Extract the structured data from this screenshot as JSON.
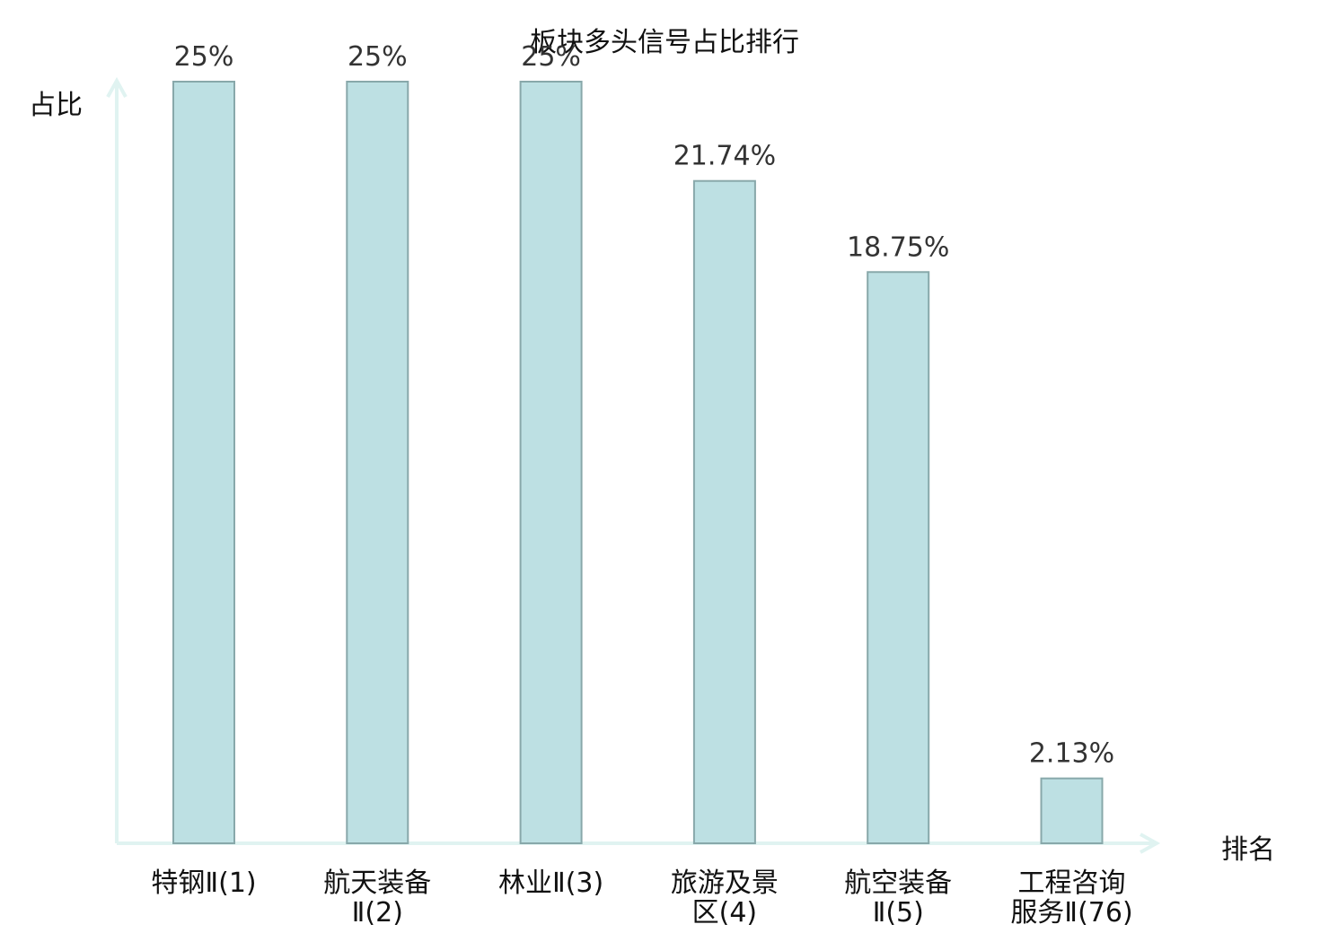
{
  "chart_data": {
    "type": "bar",
    "title": "板块多头信号占比排行",
    "ylabel": "占比",
    "xlabel": "排名",
    "categories": [
      [
        "特钢Ⅱ(1)"
      ],
      [
        "航天装备",
        "Ⅱ(2)"
      ],
      [
        "林业Ⅱ(3)"
      ],
      [
        "旅游及景",
        "区(4)"
      ],
      [
        "航空装备",
        "Ⅱ(5)"
      ],
      [
        "工程咨询",
        "服务Ⅱ(76)"
      ]
    ],
    "values": [
      25,
      25,
      25,
      21.74,
      18.75,
      2.13
    ],
    "value_labels": [
      "25%",
      "25%",
      "25%",
      "21.74%",
      "18.75%",
      "2.13%"
    ],
    "highlight_index": 5,
    "ylim": [
      0,
      25
    ],
    "grid": false,
    "colors": {
      "bar_fill": "#bde0e3",
      "bar_stroke": "#88a8aa",
      "axis": "#e0f3f1",
      "highlight_text": "#e0141e",
      "value_text": "#333333",
      "label_text": "#111111"
    }
  }
}
